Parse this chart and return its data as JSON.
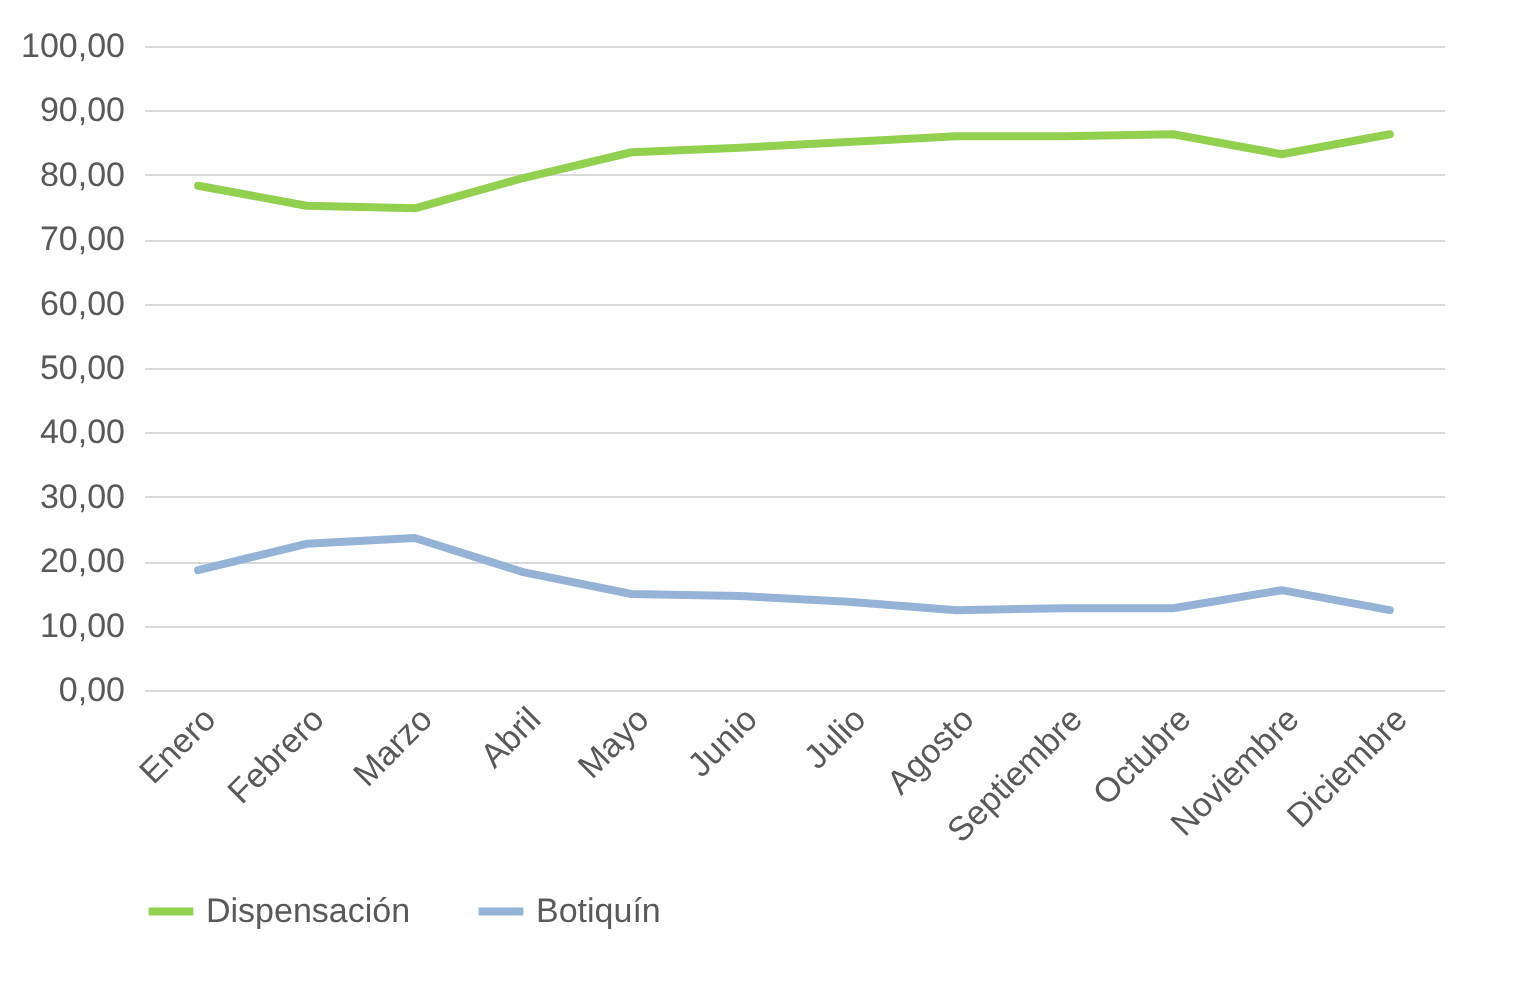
{
  "chart_data": {
    "type": "line",
    "categories": [
      "Enero",
      "Febrero",
      "Marzo",
      "Abril",
      "Mayo",
      "Junio",
      "Julio",
      "Agosto",
      "Septiembre",
      "Octubre",
      "Noviembre",
      "Diciembre"
    ],
    "series": [
      {
        "name": "Dispensación",
        "color": "#92d050",
        "values": [
          78.3,
          75.2,
          74.8,
          79.5,
          83.5,
          84.2,
          85.1,
          86.0,
          86.0,
          86.3,
          83.2,
          86.3
        ]
      },
      {
        "name": "Botiquín",
        "color": "#95b3d7",
        "values": [
          18.6,
          22.7,
          23.6,
          18.3,
          14.9,
          14.6,
          13.7,
          12.4,
          12.7,
          12.7,
          15.5,
          12.4
        ]
      }
    ],
    "ylim": [
      0,
      100
    ],
    "yticks": [
      {
        "value": 0,
        "label": "0,00"
      },
      {
        "value": 10,
        "label": "10,00"
      },
      {
        "value": 20,
        "label": "20,00"
      },
      {
        "value": 30,
        "label": "30,00"
      },
      {
        "value": 40,
        "label": "40,00"
      },
      {
        "value": 50,
        "label": "50,00"
      },
      {
        "value": 60,
        "label": "60,00"
      },
      {
        "value": 70,
        "label": "70,00"
      },
      {
        "value": 80,
        "label": "80,00"
      },
      {
        "value": 90,
        "label": "90,00"
      },
      {
        "value": 100,
        "label": "100,00"
      }
    ],
    "grid": "y",
    "legend": "bottom",
    "marker": "none",
    "line_style": "solid"
  }
}
